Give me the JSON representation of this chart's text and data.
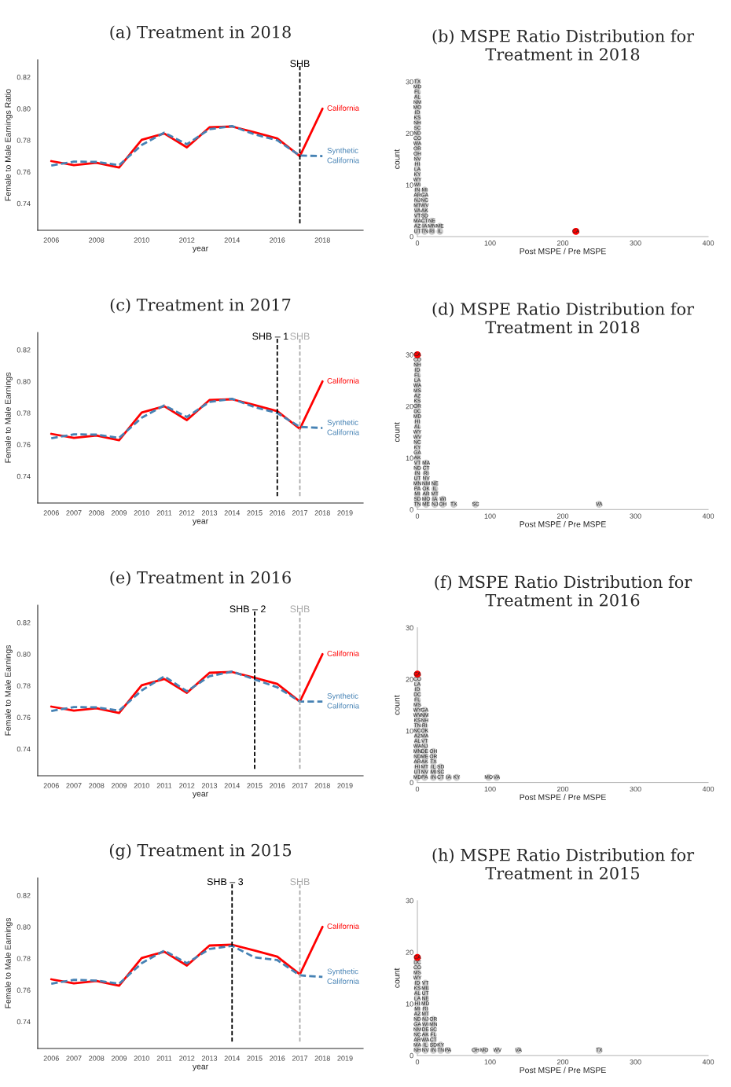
{
  "chart_data": [
    {
      "type": "line",
      "title": "(a) Treatment in 2018",
      "xlabel": "year",
      "ylabel": "Female to Male Earnings Ratio",
      "x": [
        2006,
        2007,
        2008,
        2009,
        2010,
        2011,
        2012,
        2013,
        2014,
        2015,
        2016,
        2017,
        2018
      ],
      "series": [
        {
          "name": "California",
          "color": "#ff0000",
          "line_style": "solid",
          "values": [
            0.7668,
            0.7642,
            0.7657,
            0.7628,
            0.7803,
            0.7843,
            0.7755,
            0.7882,
            0.7887,
            0.785,
            0.7812,
            0.77,
            0.8
          ]
        },
        {
          "name": "Synthetic California",
          "color": "#4682b4",
          "line_style": "dashed",
          "values": [
            0.764,
            0.7665,
            0.7663,
            0.7642,
            0.777,
            0.7848,
            0.7775,
            0.787,
            0.789,
            0.7837,
            0.78,
            0.7703,
            0.77
          ]
        }
      ],
      "xlim": [
        2005.4,
        2019.8
      ],
      "xticks": [
        2006,
        2008,
        2010,
        2012,
        2014,
        2016,
        2018
      ],
      "ylim": [
        0.723,
        0.831
      ],
      "yticks": [
        {
          "value": 0.74,
          "label": "0.74"
        },
        {
          "value": 0.76,
          "label": "0.76"
        },
        {
          "value": 0.78,
          "label": "0.78"
        },
        {
          "value": 0.8,
          "label": "0.80"
        },
        {
          "value": 0.82,
          "label": "0.82"
        }
      ],
      "ref_lines": [
        {
          "axis": "x",
          "value": 2017,
          "label": "SHB",
          "color": "#000000",
          "line_style": "dashed"
        }
      ]
    },
    {
      "type": "scatter",
      "title": "(b) MSPE Ratio Distribution for Treatment in 2018",
      "xlabel": "Post MSPE / Pre MSPE",
      "ylabel": "count",
      "marker": "circle",
      "xlim": [
        0,
        400
      ],
      "xticks": [
        0,
        100,
        200,
        300,
        400
      ],
      "ylim": [
        0,
        30
      ],
      "yticks": [
        0,
        10,
        20,
        30
      ],
      "series": [
        {
          "color": "#cccccc",
          "x": [
            0,
            10,
            20,
            31,
            0,
            10,
            20,
            31,
            0,
            10,
            20,
            0,
            10,
            0,
            10,
            0,
            10,
            0,
            10,
            0,
            10,
            0,
            10,
            0,
            0,
            0,
            0,
            0,
            0,
            0,
            0,
            0,
            0,
            0,
            0,
            0,
            0,
            0,
            0,
            0,
            0,
            0,
            0,
            0
          ],
          "values": [
            1,
            1,
            1,
            1,
            2,
            2,
            2,
            2,
            3,
            3,
            3,
            4,
            4,
            5,
            5,
            6,
            6,
            7,
            7,
            8,
            8,
            9,
            9,
            10,
            11,
            12,
            13,
            14,
            15,
            16,
            17,
            18,
            19,
            20,
            21,
            22,
            23,
            24,
            25,
            26,
            27,
            28,
            29,
            30
          ],
          "value_labels": [
            "UT",
            "TN",
            "RI",
            "IL",
            "AZ",
            "IA",
            "MN",
            "ME",
            "MA",
            "CT",
            "NE",
            "VT",
            "SD",
            "VA",
            "AK",
            "MT",
            "WV",
            "NJ",
            "NC",
            "AR",
            "GA",
            "IN",
            "MI",
            "WI",
            "WY",
            "KY",
            "LA",
            "HI",
            "NV",
            "OH",
            "OR",
            "WA",
            "CO",
            "ND",
            "SC",
            "NH",
            "KS",
            "ID",
            "MO",
            "NM",
            "AL",
            "FL",
            "MD",
            "TX"
          ]
        },
        {
          "color": "#ff0000",
          "x": [
            218
          ],
          "values": [
            1
          ],
          "value_labels": [
            "CA"
          ]
        }
      ]
    },
    {
      "type": "line",
      "title": "(c) Treatment in 2017",
      "xlabel": "year",
      "ylabel": "Female to Male Earnings",
      "x": [
        2006,
        2007,
        2008,
        2009,
        2010,
        2011,
        2012,
        2013,
        2014,
        2015,
        2016,
        2017,
        2018
      ],
      "series": [
        {
          "name": "California",
          "color": "#ff0000",
          "line_style": "solid",
          "values": [
            0.7668,
            0.7642,
            0.7657,
            0.7628,
            0.7803,
            0.7843,
            0.7755,
            0.7882,
            0.7887,
            0.785,
            0.7812,
            0.77,
            0.8
          ]
        },
        {
          "name": "Synthetic California",
          "color": "#4682b4",
          "line_style": "dashed",
          "values": [
            0.764,
            0.7665,
            0.7663,
            0.7642,
            0.777,
            0.7848,
            0.7775,
            0.787,
            0.789,
            0.7837,
            0.78,
            0.7712,
            0.7705
          ]
        }
      ],
      "xlim": [
        2005.4,
        2019.8
      ],
      "xticks": [
        2006,
        2007,
        2008,
        2009,
        2010,
        2011,
        2012,
        2013,
        2014,
        2015,
        2016,
        2017,
        2018,
        2019
      ],
      "ylim": [
        0.723,
        0.831
      ],
      "yticks": [
        {
          "value": 0.74,
          "label": "0.74"
        },
        {
          "value": 0.76,
          "label": "0.76"
        },
        {
          "value": 0.78,
          "label": "0.78"
        },
        {
          "value": 0.8,
          "label": "0.80"
        },
        {
          "value": 0.82,
          "label": "0.82"
        }
      ],
      "ref_lines": [
        {
          "axis": "x",
          "value": 2016,
          "label": "SHB – 1",
          "color": "#000000",
          "line_style": "dashed"
        },
        {
          "axis": "x",
          "value": 2017,
          "label": "SHB",
          "color": "#aaaaaa",
          "line_style": "dashed"
        }
      ]
    },
    {
      "type": "scatter",
      "title": "(d) MSPE Ratio Distribution for Treatment in 2018",
      "xlabel": "Post MSPE / Pre MSPE",
      "ylabel": "count",
      "marker": "circle",
      "xlim": [
        0,
        400
      ],
      "xticks": [
        0,
        100,
        200,
        300,
        400
      ],
      "ylim": [
        0,
        30
      ],
      "yticks": [
        0,
        10,
        20,
        30
      ],
      "series": [
        {
          "color": "#cccccc",
          "x": [
            0,
            12,
            24,
            35,
            0,
            12,
            24,
            35,
            0,
            12,
            24,
            0,
            12,
            24,
            0,
            12,
            24,
            0,
            12,
            0,
            12,
            0,
            12,
            0,
            12,
            0,
            0,
            0,
            0,
            0,
            0,
            0,
            0,
            0,
            0,
            0,
            0,
            0,
            0,
            0,
            0,
            0,
            0,
            0,
            0,
            50,
            80,
            250
          ],
          "values": [
            1,
            1,
            1,
            1,
            2,
            2,
            2,
            2,
            3,
            3,
            3,
            4,
            4,
            4,
            5,
            5,
            5,
            6,
            6,
            7,
            7,
            8,
            8,
            9,
            9,
            10,
            11,
            12,
            13,
            14,
            15,
            16,
            17,
            18,
            19,
            20,
            21,
            22,
            23,
            24,
            25,
            26,
            27,
            28,
            29,
            1,
            1,
            1
          ],
          "value_labels": [
            "TN",
            "ME",
            "NJ",
            "OH",
            "SD",
            "MO",
            "IA",
            "WI",
            "MI",
            "AR",
            "MT",
            "PA",
            "OK",
            "IL",
            "MN",
            "NM",
            "NE",
            "UT",
            "NV",
            "IN",
            "RI",
            "ND",
            "CT",
            "VT",
            "MA",
            "AK",
            "GA",
            "KY",
            "NC",
            "WV",
            "WY",
            "AL",
            "HI",
            "MD",
            "DC",
            "OR",
            "KS",
            "AZ",
            "MS",
            "WA",
            "LA",
            "FL",
            "ID",
            "NH",
            "CO",
            "TX",
            "SC",
            "VA"
          ]
        },
        {
          "color": "#ff0000",
          "x": [
            0
          ],
          "values": [
            30
          ],
          "value_labels": [
            "CA"
          ]
        }
      ]
    },
    {
      "type": "line",
      "title": "(e) Treatment in 2016",
      "xlabel": "year",
      "ylabel": "Female to Male Earnings",
      "x": [
        2006,
        2007,
        2008,
        2009,
        2010,
        2011,
        2012,
        2013,
        2014,
        2015,
        2016,
        2017,
        2018
      ],
      "series": [
        {
          "name": "California",
          "color": "#ff0000",
          "line_style": "solid",
          "values": [
            0.7668,
            0.7642,
            0.7657,
            0.7628,
            0.7803,
            0.7843,
            0.7755,
            0.7882,
            0.7887,
            0.785,
            0.7812,
            0.77,
            0.8
          ]
        },
        {
          "name": "Synthetic California",
          "color": "#4682b4",
          "line_style": "dashed",
          "values": [
            0.764,
            0.7665,
            0.7663,
            0.7642,
            0.777,
            0.786,
            0.7765,
            0.786,
            0.789,
            0.784,
            0.779,
            0.77,
            0.77
          ]
        }
      ],
      "xlim": [
        2005.4,
        2019.8
      ],
      "xticks": [
        2006,
        2007,
        2008,
        2009,
        2010,
        2011,
        2012,
        2013,
        2014,
        2015,
        2016,
        2017,
        2018,
        2019
      ],
      "ylim": [
        0.723,
        0.831
      ],
      "yticks": [
        {
          "value": 0.74,
          "label": "0.74"
        },
        {
          "value": 0.76,
          "label": "0.76"
        },
        {
          "value": 0.78,
          "label": "0.78"
        },
        {
          "value": 0.8,
          "label": "0.80"
        },
        {
          "value": 0.82,
          "label": "0.82"
        }
      ],
      "ref_lines": [
        {
          "axis": "x",
          "value": 2015,
          "label": "SHB – 2",
          "color": "#000000",
          "line_style": "dashed"
        },
        {
          "axis": "x",
          "value": 2017,
          "label": "SHB",
          "color": "#aaaaaa",
          "line_style": "dashed"
        }
      ]
    },
    {
      "type": "scatter",
      "title": "(f) MSPE Ratio Distribution for Treatment in 2016",
      "xlabel": "Post MSPE / Pre MSPE",
      "ylabel": "count",
      "marker": "circle",
      "xlim": [
        0,
        400
      ],
      "xticks": [
        0,
        100,
        200,
        300,
        400
      ],
      "ylim": [
        0,
        30
      ],
      "yticks": [
        0,
        10,
        20,
        30
      ],
      "series": [
        {
          "color": "#cccccc",
          "x": [
            0,
            10,
            22,
            32,
            43,
            54,
            0,
            10,
            22,
            32,
            0,
            10,
            22,
            32,
            0,
            10,
            22,
            0,
            10,
            22,
            0,
            10,
            22,
            0,
            10,
            0,
            10,
            0,
            10,
            0,
            10,
            0,
            10,
            0,
            10,
            0,
            10,
            0,
            10,
            0,
            0,
            0,
            0,
            0,
            0,
            98,
            109
          ],
          "values": [
            1,
            1,
            1,
            1,
            1,
            1,
            2,
            2,
            2,
            2,
            3,
            3,
            3,
            3,
            4,
            4,
            4,
            5,
            5,
            5,
            6,
            6,
            6,
            7,
            7,
            8,
            8,
            9,
            9,
            10,
            10,
            11,
            11,
            12,
            12,
            13,
            13,
            14,
            14,
            15,
            16,
            17,
            18,
            19,
            20,
            1,
            1
          ],
          "value_labels": [
            "MD",
            "PA",
            "IN",
            "CT",
            "IA",
            "KY",
            "UT",
            "NV",
            "MI",
            "SC",
            "HI",
            "MT",
            "IL",
            "SD",
            "AR",
            "AK",
            "TX",
            "ND",
            "ME",
            "OR",
            "MN",
            "DE",
            "OH",
            "WA",
            "NJ",
            "AL",
            "VT",
            "AZ",
            "MA",
            "NC",
            "OK",
            "TN",
            "RI",
            "KS",
            "NH",
            "WV",
            "NM",
            "WY",
            "GA",
            "MS",
            "FL",
            "DC",
            "ID",
            "LA",
            "CO",
            "MO",
            "VA"
          ]
        },
        {
          "color": "#ff0000",
          "x": [
            0
          ],
          "values": [
            21
          ],
          "value_labels": [
            "CA"
          ]
        }
      ]
    },
    {
      "type": "line",
      "title": "(g) Treatment in 2015",
      "xlabel": "year",
      "ylabel": "Female to Male Earnings",
      "x": [
        2006,
        2007,
        2008,
        2009,
        2010,
        2011,
        2012,
        2013,
        2014,
        2015,
        2016,
        2017,
        2018
      ],
      "series": [
        {
          "name": "California",
          "color": "#ff0000",
          "line_style": "solid",
          "values": [
            0.7668,
            0.7642,
            0.7657,
            0.7628,
            0.7803,
            0.7843,
            0.7755,
            0.7882,
            0.7887,
            0.785,
            0.7812,
            0.77,
            0.8
          ]
        },
        {
          "name": "Synthetic California",
          "color": "#4682b4",
          "line_style": "dashed",
          "values": [
            0.764,
            0.7665,
            0.766,
            0.764,
            0.777,
            0.785,
            0.777,
            0.786,
            0.788,
            0.7807,
            0.779,
            0.7693,
            0.7683
          ]
        }
      ],
      "xlim": [
        2005.4,
        2019.8
      ],
      "xticks": [
        2006,
        2007,
        2008,
        2009,
        2010,
        2011,
        2012,
        2013,
        2014,
        2015,
        2016,
        2017,
        2018,
        2019
      ],
      "ylim": [
        0.723,
        0.831
      ],
      "yticks": [
        {
          "value": 0.74,
          "label": "0.74"
        },
        {
          "value": 0.76,
          "label": "0.76"
        },
        {
          "value": 0.78,
          "label": "0.78"
        },
        {
          "value": 0.8,
          "label": "0.80"
        },
        {
          "value": 0.82,
          "label": "0.82"
        }
      ],
      "ref_lines": [
        {
          "axis": "x",
          "value": 2014,
          "label": "SHB – 3",
          "color": "#000000",
          "line_style": "dashed"
        },
        {
          "axis": "x",
          "value": 2017,
          "label": "SHB",
          "color": "#aaaaaa",
          "line_style": "dashed"
        }
      ]
    },
    {
      "type": "scatter",
      "title": "(h) MSPE Ratio Distribution for Treatment in 2015",
      "xlabel": "Post MSPE / Pre MSPE",
      "ylabel": "count",
      "marker": "circle",
      "xlim": [
        0,
        400
      ],
      "xticks": [
        0,
        100,
        200,
        300,
        400
      ],
      "ylim": [
        0,
        30
      ],
      "yticks": [
        0,
        10,
        20,
        30
      ],
      "series": [
        {
          "color": "#cccccc",
          "x": [
            0,
            11,
            22,
            32,
            42,
            0,
            11,
            22,
            32,
            0,
            11,
            22,
            0,
            11,
            22,
            0,
            11,
            22,
            0,
            11,
            22,
            0,
            11,
            22,
            0,
            11,
            0,
            11,
            0,
            11,
            0,
            11,
            0,
            11,
            0,
            11,
            0,
            11,
            0,
            0,
            0,
            0,
            80,
            92,
            110,
            139,
            250
          ],
          "values": [
            1,
            1,
            1,
            1,
            1,
            2,
            2,
            2,
            2,
            3,
            3,
            3,
            4,
            4,
            4,
            5,
            5,
            5,
            6,
            6,
            6,
            7,
            7,
            7,
            8,
            8,
            9,
            9,
            10,
            10,
            11,
            11,
            12,
            12,
            13,
            13,
            14,
            14,
            15,
            16,
            17,
            18,
            1,
            1,
            1,
            1,
            1
          ],
          "value_labels": [
            "NH",
            "NV",
            "IN",
            "TN",
            "PA",
            "MA",
            "IL",
            "SD",
            "KY",
            "AR",
            "WA",
            "CT",
            "NC",
            "AK",
            "FL",
            "NM",
            "DE",
            "SC",
            "GA",
            "WI",
            "MN",
            "ND",
            "NJ",
            "OR",
            "AZ",
            "MT",
            "MI",
            "RI",
            "HI",
            "MD",
            "LA",
            "NE",
            "AL",
            "UT",
            "KS",
            "ME",
            "ID",
            "VT",
            "WY",
            "MS",
            "CO",
            "DC",
            "OH",
            "MO",
            "WV",
            "VA",
            "TX"
          ]
        },
        {
          "color": "#ff0000",
          "x": [
            0
          ],
          "values": [
            19
          ],
          "value_labels": [
            "CA"
          ]
        }
      ]
    }
  ]
}
